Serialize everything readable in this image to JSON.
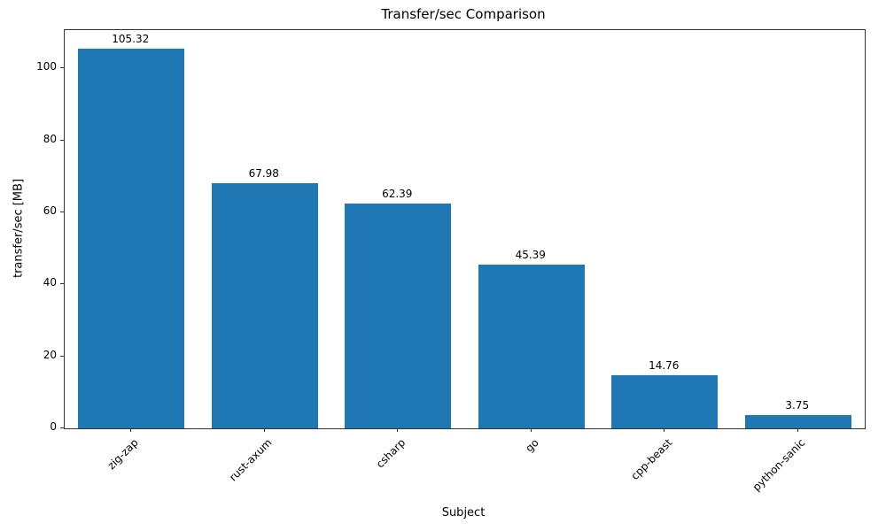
{
  "chart_data": {
    "type": "bar",
    "title": "Transfer/sec Comparison",
    "xlabel": "Subject",
    "ylabel": "transfer/sec [MB]",
    "categories": [
      "zig-zap",
      "rust-axum",
      "csharp",
      "go",
      "cpp-beast",
      "python-sanic"
    ],
    "values": [
      105.32,
      67.98,
      62.39,
      45.39,
      14.76,
      3.75
    ],
    "value_labels": [
      "105.32",
      "67.98",
      "62.39",
      "45.39",
      "14.76",
      "3.75"
    ],
    "ylim": [
      0,
      110.6
    ],
    "yticks": [
      0,
      20,
      40,
      60,
      80,
      100
    ],
    "bar_color": "#1f77b4",
    "grid": "off",
    "legend": "none"
  }
}
